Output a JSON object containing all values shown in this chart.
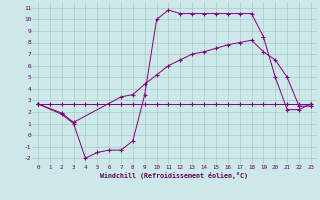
{
  "xlabel": "Windchill (Refroidissement éolien,°C)",
  "bg_color": "#cce8e8",
  "line_color": "#800080",
  "grid_color": "#aacccc",
  "xlim": [
    -0.5,
    23.5
  ],
  "ylim": [
    -2.5,
    11.5
  ],
  "xticks": [
    0,
    1,
    2,
    3,
    4,
    5,
    6,
    7,
    8,
    9,
    10,
    11,
    12,
    13,
    14,
    15,
    16,
    17,
    18,
    19,
    20,
    21,
    22,
    23
  ],
  "yticks": [
    -2,
    -1,
    0,
    1,
    2,
    3,
    4,
    5,
    6,
    7,
    8,
    9,
    10,
    11
  ],
  "line1_x": [
    0,
    1,
    2,
    3,
    4,
    5,
    6,
    7,
    8,
    9,
    10,
    11,
    12,
    13,
    14,
    15,
    16,
    17,
    18,
    19,
    20,
    21,
    22,
    23
  ],
  "line1_y": [
    2.7,
    2.7,
    2.7,
    2.7,
    2.7,
    2.7,
    2.7,
    2.7,
    2.7,
    2.7,
    2.7,
    2.7,
    2.7,
    2.7,
    2.7,
    2.7,
    2.7,
    2.7,
    2.7,
    2.7,
    2.7,
    2.7,
    2.7,
    2.7
  ],
  "line2_x": [
    0,
    2,
    3,
    7,
    8,
    9,
    10,
    11,
    12,
    13,
    14,
    15,
    16,
    17,
    18,
    19,
    20,
    21,
    22,
    23
  ],
  "line2_y": [
    2.7,
    1.9,
    1.1,
    3.3,
    3.5,
    4.4,
    5.2,
    6.0,
    6.5,
    7.0,
    7.2,
    7.5,
    7.8,
    8.0,
    8.2,
    7.2,
    6.5,
    5.0,
    2.5,
    2.5
  ],
  "line3_x": [
    0,
    2,
    3,
    4,
    5,
    6,
    7,
    8,
    9,
    10,
    11,
    12,
    13,
    14,
    15,
    16,
    17,
    18,
    19,
    20,
    21,
    22,
    23
  ],
  "line3_y": [
    2.7,
    1.8,
    1.0,
    -2.0,
    -1.5,
    -1.3,
    -1.3,
    -0.5,
    3.5,
    10.0,
    10.8,
    10.5,
    10.5,
    10.5,
    10.5,
    10.5,
    10.5,
    10.5,
    8.5,
    5.0,
    2.2,
    2.2,
    2.7
  ]
}
